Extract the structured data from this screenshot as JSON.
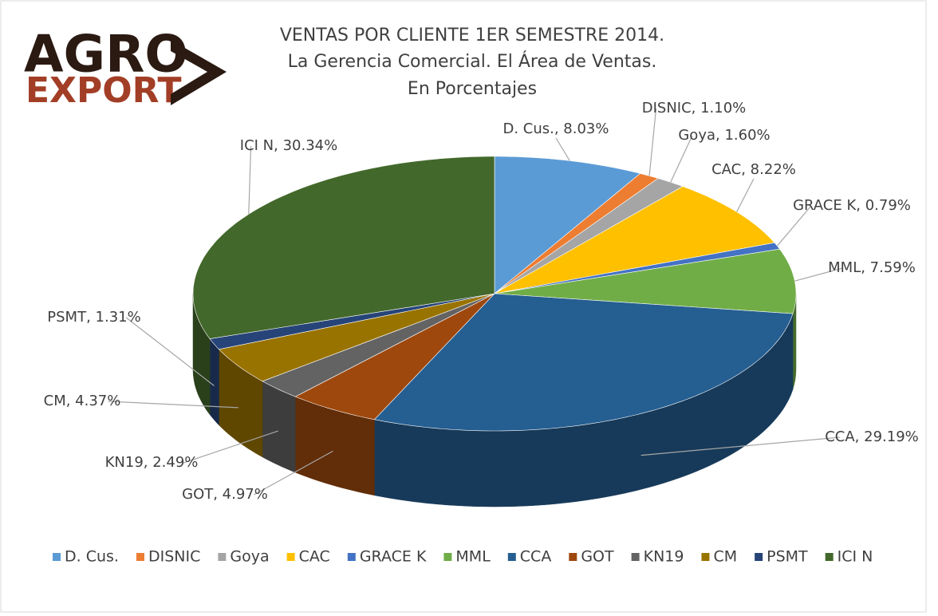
{
  "logo": [
    "AGRO",
    "EXPORT"
  ],
  "chart_data": {
    "type": "pie3d",
    "title": "VENTAS POR CLIENTE 1ER SEMESTRE 2014.",
    "subtitle": [
      "La Gerencia Comercial. El Área de Ventas.",
      "En Porcentajes"
    ],
    "categories": [
      "D. Cus.",
      "DISNIC",
      "Goya",
      "CAC",
      "GRACE K",
      "MML",
      "CCA",
      "GOT",
      "KN19",
      "CM",
      "PSMT",
      "ICI N"
    ],
    "values": [
      8.03,
      1.1,
      1.6,
      8.22,
      0.79,
      7.59,
      29.19,
      4.97,
      2.49,
      4.37,
      1.31,
      30.34
    ],
    "value_labels": [
      "D. Cus., 8.03%",
      "DISNIC, 1.10%",
      "Goya, 1.60%",
      "CAC, 8.22%",
      "GRACE K, 0.79%",
      "MML, 7.59%",
      "CCA, 29.19%",
      "GOT, 4.97%",
      "KN19, 2.49%",
      "CM, 4.37%",
      "PSMT, 1.31%",
      "ICI N, 30.34%"
    ],
    "colors": [
      "#5b9bd5",
      "#ed7d31",
      "#a5a5a5",
      "#ffc000",
      "#4472c4",
      "#70ad47",
      "#255e91",
      "#9e480e",
      "#636363",
      "#997300",
      "#264478",
      "#43682b"
    ],
    "legend": "bottom"
  }
}
